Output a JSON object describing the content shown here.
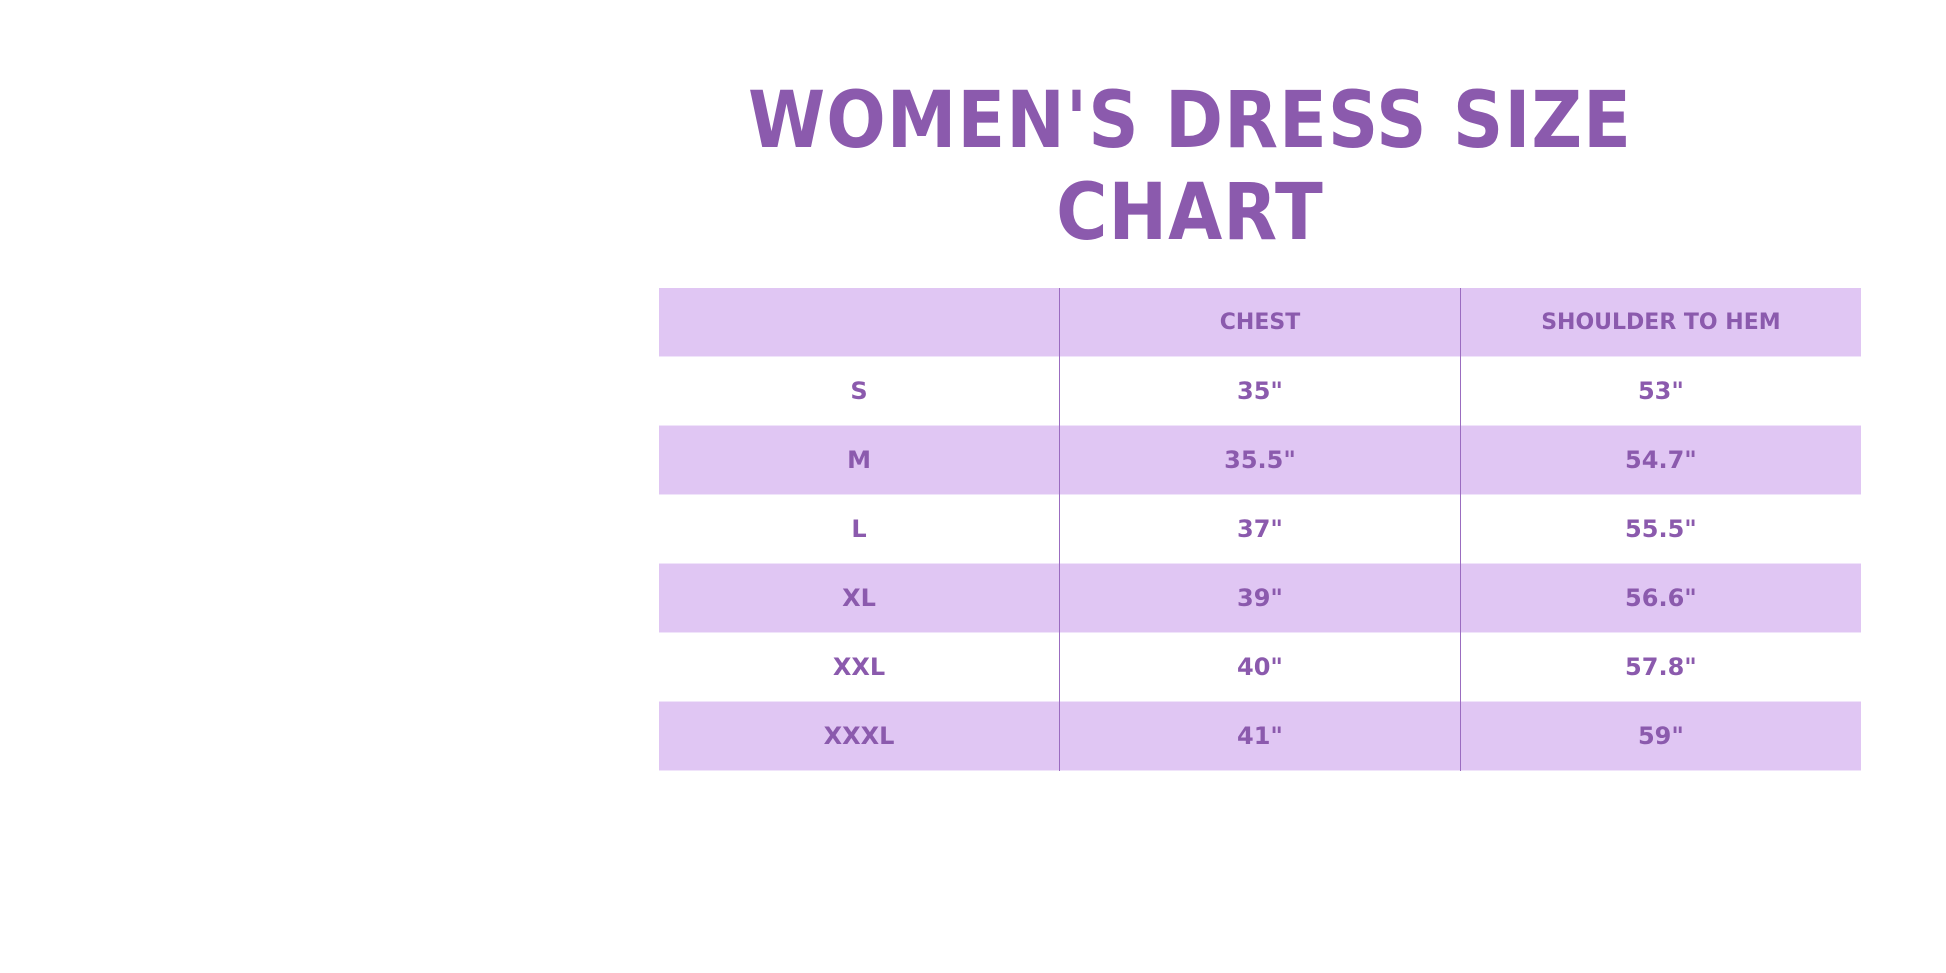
{
  "title": "WOMEN'S DRESS SIZE CHART",
  "colors": {
    "accent": "#8b5aad",
    "row_shade": "#e0c6f3"
  },
  "table": {
    "headers": [
      "",
      "CHEST",
      "SHOULDER TO HEM"
    ],
    "rows": [
      [
        "S",
        "35\"",
        "53\""
      ],
      [
        "M",
        "35.5\"",
        "54.7\""
      ],
      [
        "L",
        "37\"",
        "55.5\""
      ],
      [
        "XL",
        "39\"",
        "56.6\""
      ],
      [
        "XXL",
        "40\"",
        "57.8\""
      ],
      [
        "XXXL",
        "41\"",
        "59\""
      ]
    ]
  }
}
